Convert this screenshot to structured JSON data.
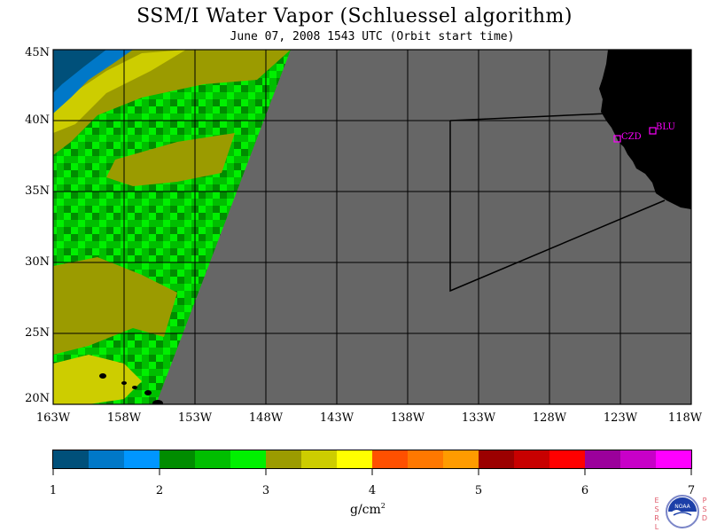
{
  "header": {
    "title": "SSM/I Water Vapor (Schluessel algorithm)",
    "subtitle": "June 07, 2008  1543 UTC  (Orbit start time)"
  },
  "map": {
    "latitude_labels": [
      "45N",
      "40N",
      "35N",
      "30N",
      "25N",
      "20N"
    ],
    "longitude_labels": [
      "163W",
      "158W",
      "153W",
      "148W",
      "143W",
      "138W",
      "133W",
      "128W",
      "123W",
      "118W"
    ],
    "stations": [
      {
        "id": "CZD"
      },
      {
        "id": "BLU"
      }
    ],
    "colors": {
      "no_data": "#666666",
      "land": "#000000",
      "station": "#ff00ff"
    }
  },
  "colorbar": {
    "tick_labels": [
      "1",
      "2",
      "3",
      "4",
      "5",
      "6",
      "7"
    ],
    "units": "g/cm",
    "units_exponent": "2",
    "colors": [
      "#00507a",
      "#0078c8",
      "#0096ff",
      "#008c00",
      "#00be00",
      "#00f000",
      "#9b9b00",
      "#cdcd00",
      "#ffff00",
      "#ff5000",
      "#ff7800",
      "#ff9b00",
      "#9b0000",
      "#c80000",
      "#ff0000",
      "#9b009b",
      "#c800c8",
      "#ff00ff"
    ]
  },
  "branding": {
    "left_vertical_text": "ESRL",
    "right_vertical_text": "PSD",
    "logo_text": "NOAA"
  }
}
